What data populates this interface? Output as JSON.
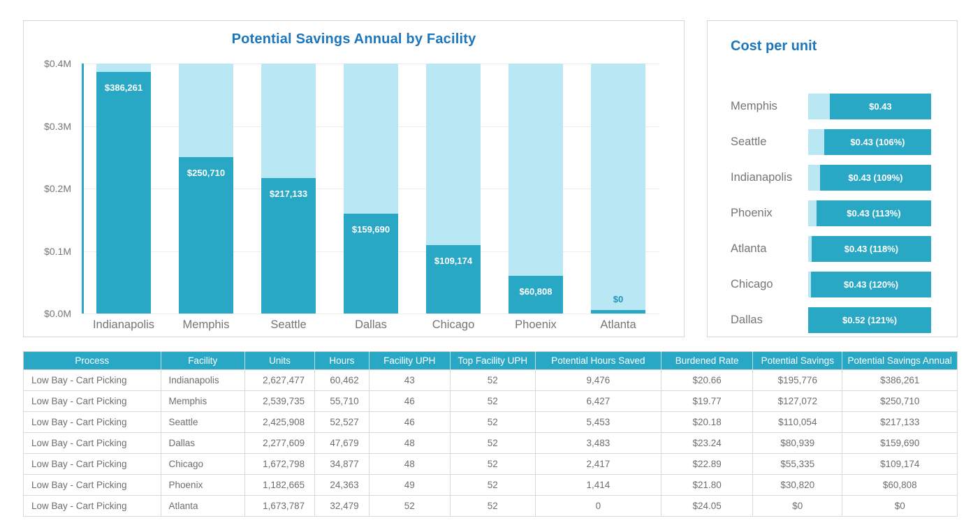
{
  "colors": {
    "teal": "#29a8c6",
    "light_blue": "#b9e7f4",
    "title_blue": "#1b76bc",
    "axis_label_gray": "#757575",
    "table_text_gray": "#6e6e6e"
  },
  "chart_data": [
    {
      "type": "bar",
      "title": "Potential Savings Annual by Facility",
      "categories": [
        "Indianapolis",
        "Memphis",
        "Seattle",
        "Dallas",
        "Chicago",
        "Phoenix",
        "Atlanta"
      ],
      "values": [
        386261,
        250710,
        217133,
        159690,
        109174,
        60808,
        0
      ],
      "value_labels": [
        "$386,261",
        "$250,710",
        "$217,133",
        "$159,690",
        "$109,174",
        "$60,808",
        "$0"
      ],
      "xlabel": "",
      "ylabel": "",
      "ylim": [
        0,
        400000
      ],
      "y_ticks": [
        "$0.4M",
        "$0.3M",
        "$0.2M",
        "$0.1M",
        "$0.0M"
      ],
      "grid": true,
      "legend": "none",
      "note": "each column has a full-height light-blue background bar up to $0.4M"
    },
    {
      "type": "bar",
      "orientation": "horizontal",
      "title": "Cost per unit",
      "categories": [
        "Memphis",
        "Seattle",
        "Indianapolis",
        "Phoenix",
        "Atlanta",
        "Chicago",
        "Dallas"
      ],
      "values": [
        0.43,
        0.43,
        0.43,
        0.43,
        0.43,
        0.43,
        0.52
      ],
      "value_labels": [
        "$0.43",
        "$0.43 (106%)",
        "$0.43 (109%)",
        "$0.43 (113%)",
        "$0.43 (118%)",
        "$0.43 (120%)",
        "$0.52 (121%)"
      ],
      "light_segment_pct": [
        17.5,
        13.0,
        9.6,
        6.8,
        2.8,
        2.3,
        0
      ],
      "grid": false,
      "legend": "none"
    },
    {
      "type": "table",
      "columns": [
        "Process",
        "Facility",
        "Units",
        "Hours",
        "Facility UPH",
        "Top Facility UPH",
        "Potential Hours Saved",
        "Burdened Rate",
        "Potential Savings",
        "Potential Savings Annual"
      ],
      "rows": [
        [
          "Low Bay - Cart Picking",
          "Indianapolis",
          "2,627,477",
          "60,462",
          "43",
          "52",
          "9,476",
          "$20.66",
          "$195,776",
          "$386,261"
        ],
        [
          "Low Bay - Cart Picking",
          "Memphis",
          "2,539,735",
          "55,710",
          "46",
          "52",
          "6,427",
          "$19.77",
          "$127,072",
          "$250,710"
        ],
        [
          "Low Bay - Cart Picking",
          "Seattle",
          "2,425,908",
          "52,527",
          "46",
          "52",
          "5,453",
          "$20.18",
          "$110,054",
          "$217,133"
        ],
        [
          "Low Bay - Cart Picking",
          "Dallas",
          "2,277,609",
          "47,679",
          "48",
          "52",
          "3,483",
          "$23.24",
          "$80,939",
          "$159,690"
        ],
        [
          "Low Bay - Cart Picking",
          "Chicago",
          "1,672,798",
          "34,877",
          "48",
          "52",
          "2,417",
          "$22.89",
          "$55,335",
          "$109,174"
        ],
        [
          "Low Bay - Cart Picking",
          "Phoenix",
          "1,182,665",
          "24,363",
          "49",
          "52",
          "1,414",
          "$21.80",
          "$30,820",
          "$60,808"
        ],
        [
          "Low Bay - Cart Picking",
          "Atlanta",
          "1,673,787",
          "32,479",
          "52",
          "52",
          "0",
          "$24.05",
          "$0",
          "$0"
        ]
      ]
    }
  ]
}
